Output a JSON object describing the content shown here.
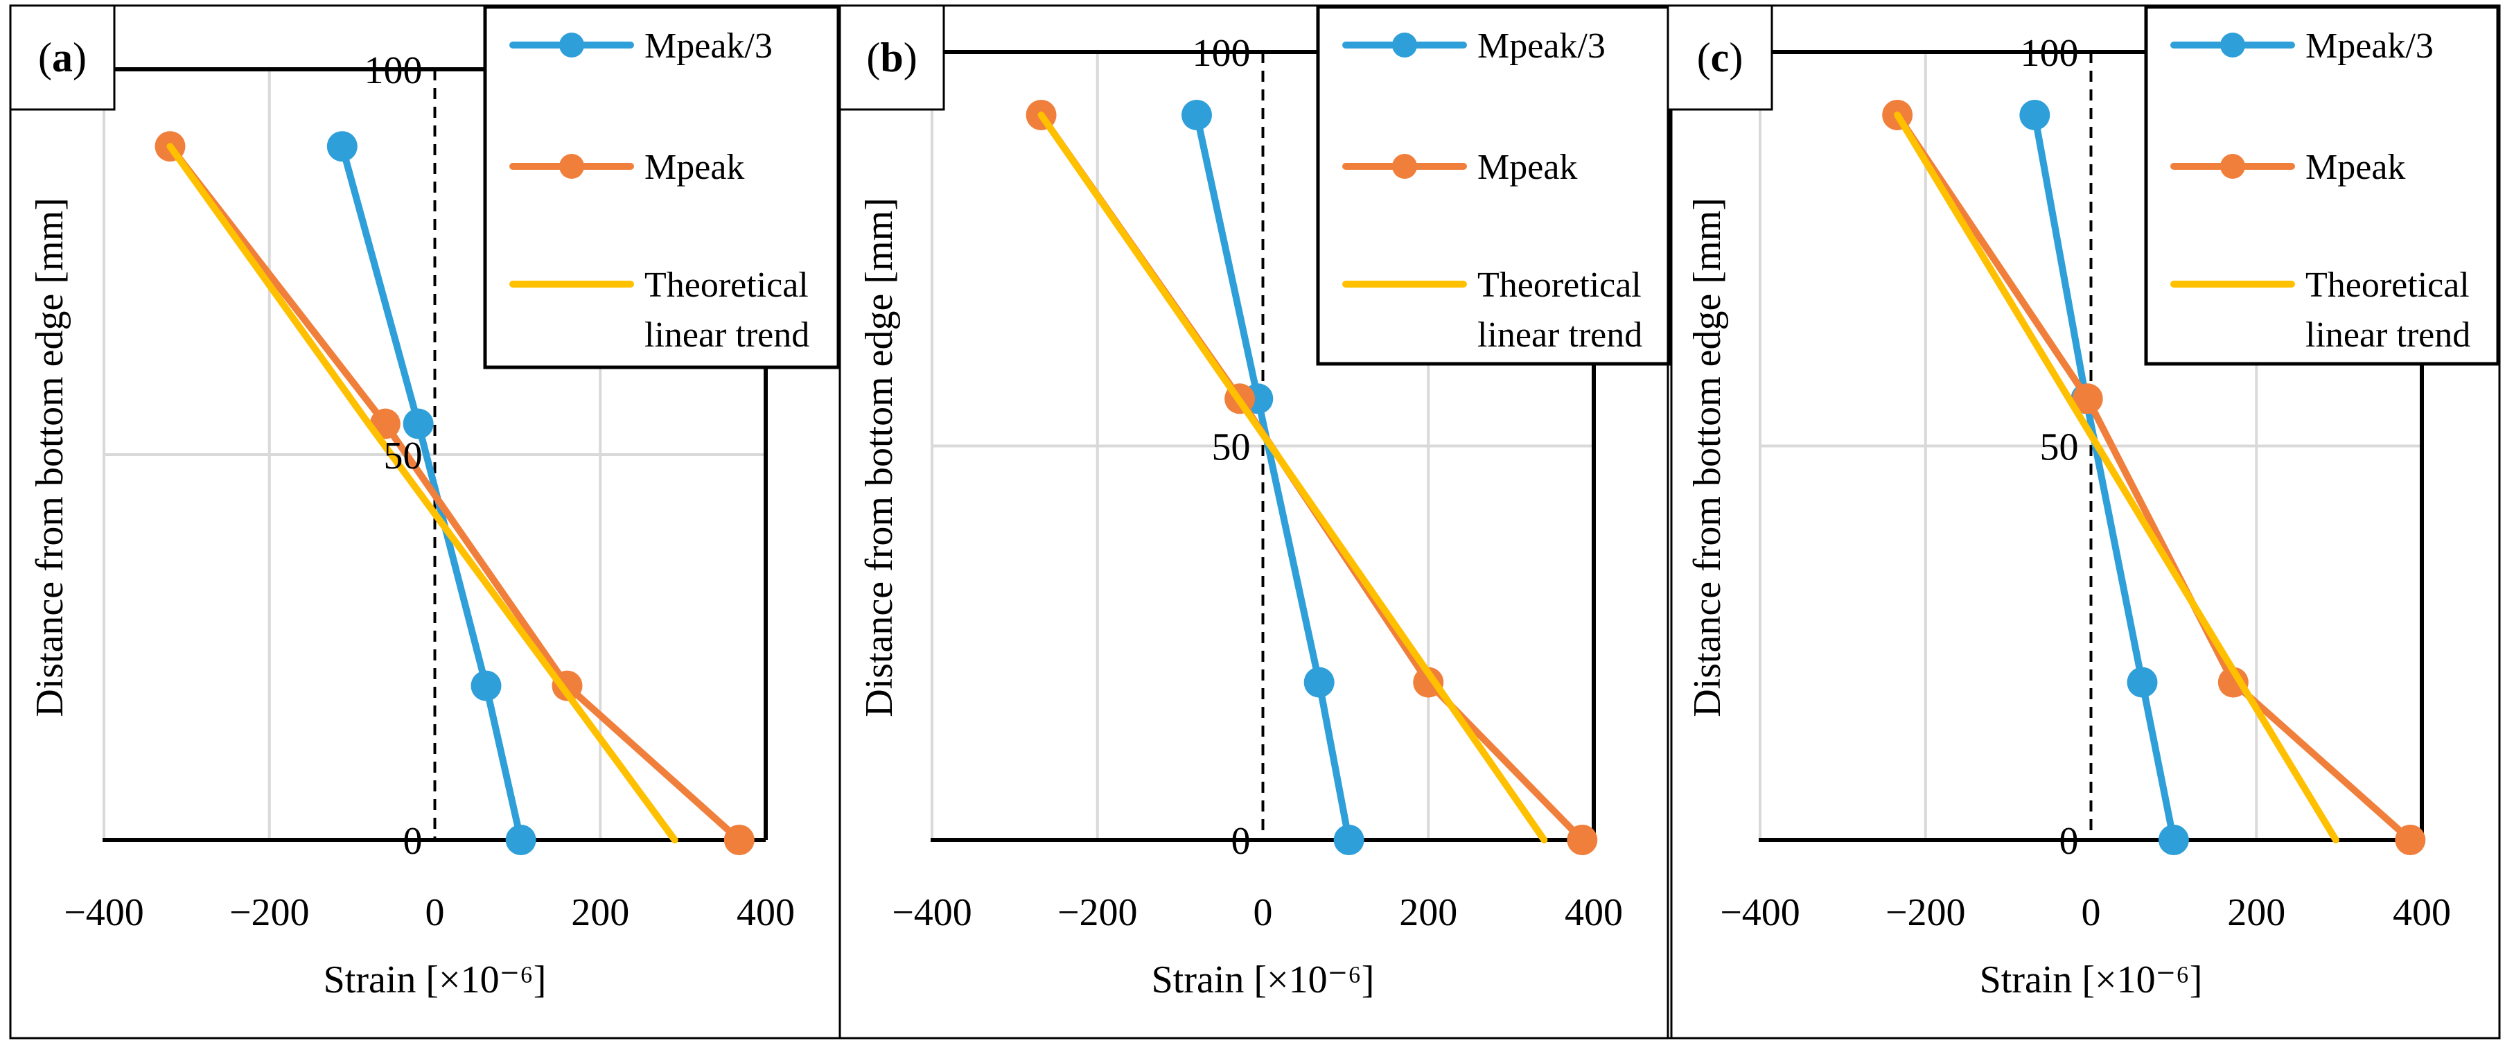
{
  "chart_data": [
    {
      "type": "line",
      "panel_label": "a",
      "xlabel": "Strain [×10⁻⁶]",
      "ylabel": "Distance from bottom edge [mm]",
      "xlim": [
        -400,
        400
      ],
      "ylim": [
        0,
        100
      ],
      "x_ticks": [
        "−400",
        "−200",
        "0",
        "200",
        "400"
      ],
      "y_ticks": [
        "0",
        "50",
        "100"
      ],
      "grid": true,
      "legend_position": "top-right",
      "series": [
        {
          "name": "Mpeak/3",
          "color": "#2E9FD9",
          "markers": true,
          "points": [
            [
              -112,
              90
            ],
            [
              -20,
              54
            ],
            [
              62,
              20
            ],
            [
              104,
              0
            ]
          ]
        },
        {
          "name": "Mpeak",
          "color": "#F07F3C",
          "markers": true,
          "points": [
            [
              -320,
              90
            ],
            [
              -60,
              54
            ],
            [
              160,
              20
            ],
            [
              368,
              0
            ]
          ]
        },
        {
          "name": "Theoretical linear trend",
          "name_lines": [
            "Theoretical",
            "linear trend"
          ],
          "color": "#FFC000",
          "markers": false,
          "points": [
            [
              -320,
              90
            ],
            [
              -80,
              54
            ],
            [
              290,
              0
            ]
          ]
        }
      ]
    },
    {
      "type": "line",
      "panel_label": "b",
      "xlabel": "Strain [×10⁻⁶]",
      "ylabel": "Distance from bottom edge [mm]",
      "xlim": [
        -400,
        400
      ],
      "ylim": [
        0,
        100
      ],
      "x_ticks": [
        "−400",
        "−200",
        "0",
        "200",
        "400"
      ],
      "y_ticks": [
        "0",
        "50",
        "100"
      ],
      "grid": true,
      "legend_position": "top-right",
      "series": [
        {
          "name": "Mpeak/3",
          "color": "#2E9FD9",
          "markers": true,
          "points": [
            [
              -80,
              92
            ],
            [
              -6,
              56
            ],
            [
              68,
              20
            ],
            [
              104,
              0
            ]
          ]
        },
        {
          "name": "Mpeak",
          "color": "#F07F3C",
          "markers": true,
          "points": [
            [
              -268,
              92
            ],
            [
              -28,
              56
            ],
            [
              200,
              20
            ],
            [
              386,
              0
            ]
          ]
        },
        {
          "name": "Theoretical linear trend",
          "name_lines": [
            "Theoretical",
            "linear trend"
          ],
          "color": "#FFC000",
          "markers": false,
          "points": [
            [
              -268,
              92
            ],
            [
              340,
              0
            ]
          ]
        }
      ]
    },
    {
      "type": "line",
      "panel_label": "c",
      "xlabel": "Strain [×10⁻⁶]",
      "ylabel": "Distance from bottom edge [mm]",
      "xlim": [
        -400,
        400
      ],
      "ylim": [
        0,
        100
      ],
      "x_ticks": [
        "−400",
        "−200",
        "0",
        "200",
        "400"
      ],
      "y_ticks": [
        "0",
        "50",
        "100"
      ],
      "grid": true,
      "legend_position": "top-right",
      "series": [
        {
          "name": "Mpeak/3",
          "color": "#2E9FD9",
          "markers": true,
          "points": [
            [
              -68,
              92
            ],
            [
              -6,
              56
            ],
            [
              62,
              20
            ],
            [
              100,
              0
            ]
          ]
        },
        {
          "name": "Mpeak",
          "color": "#F07F3C",
          "markers": true,
          "points": [
            [
              -234,
              92
            ],
            [
              -4,
              56
            ],
            [
              172,
              20
            ],
            [
              386,
              0
            ]
          ]
        },
        {
          "name": "Theoretical linear trend",
          "name_lines": [
            "Theoretical",
            "linear trend"
          ],
          "color": "#FFC000",
          "markers": false,
          "points": [
            [
              -234,
              92
            ],
            [
              296,
              0
            ]
          ]
        }
      ]
    }
  ]
}
